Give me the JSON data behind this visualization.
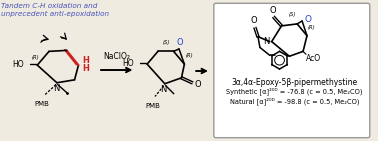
{
  "bg_color": "#f0ebe0",
  "title_text": "Tandem C-H oxidation and\nunprecedent anti-epoxidation",
  "title_color": "#4455bb",
  "reagent_text": "NaClO₂",
  "compound_name": "3α,4α-Epoxy-5β-pipermethystine",
  "synthetic_line": "Synthetic [α]²⁰ᴰ = -76.8 (c = 0.5, Me₂CO)",
  "natural_line": "Natural [α]²⁰ᴰ = -98.8 (c = 0.5, Me₂CO)",
  "figsize": [
    3.78,
    1.41
  ],
  "dpi": 100
}
